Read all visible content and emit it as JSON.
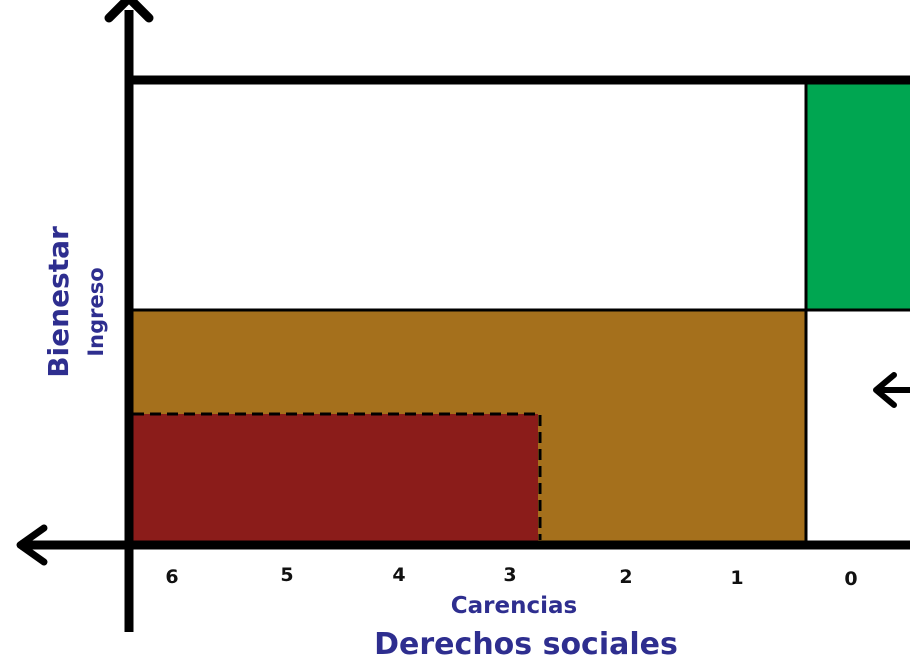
{
  "x_axis": {
    "label_top": "Carencias",
    "label_bottom": "Derechos sociales",
    "ticks": [
      "6",
      "5",
      "4",
      "3",
      "2",
      "1",
      "0"
    ]
  },
  "y_axis": {
    "label_outer": "Bienestar",
    "label_inner": "Ingreso"
  },
  "colors": {
    "green": "#00a651",
    "ochre": "#a5701c",
    "dark_red": "#8b1c1a",
    "axis": "#000000",
    "label": "#2e2e8f"
  }
}
